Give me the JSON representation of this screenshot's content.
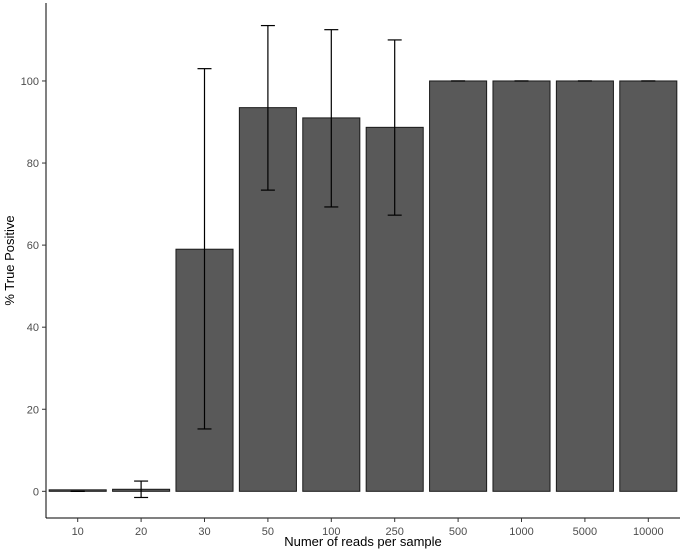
{
  "chart_data": {
    "type": "bar",
    "title": "",
    "xlabel": "Numer of reads per sample",
    "ylabel": "% True Positive",
    "categories": [
      "10",
      "20",
      "30",
      "50",
      "100",
      "250",
      "500",
      "1000",
      "5000",
      "10000"
    ],
    "values": [
      0,
      0.5,
      59,
      93.5,
      91,
      88.7,
      100,
      100,
      100,
      100
    ],
    "error_low": [
      0,
      -1.5,
      15.2,
      73.4,
      69.3,
      67.3,
      100,
      100,
      100,
      100
    ],
    "error_high": [
      0,
      2.5,
      103,
      113.5,
      112.5,
      110,
      100,
      100,
      100,
      100
    ],
    "ylim": [
      -6.5,
      119
    ],
    "yticks": [
      0,
      20,
      40,
      60,
      80,
      100
    ],
    "grid": false,
    "legend": "none",
    "bar_color": "#595959",
    "bar_outline": "#1a1a1a",
    "error_bar_color": "#000000"
  }
}
